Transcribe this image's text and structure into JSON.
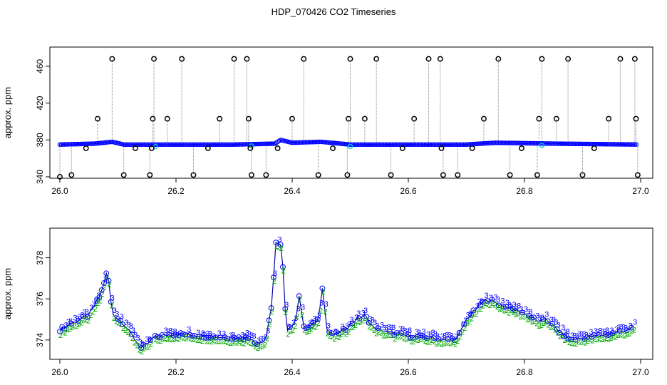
{
  "title": "HDP_070426  CO2 Timeseries",
  "chart_data": [
    {
      "type": "scatter",
      "ylabel": "approx. ppm",
      "xlim": [
        26.0,
        27.0
      ],
      "ylim": [
        340,
        470
      ],
      "x_ticks": [
        26.0,
        26.2,
        26.4,
        26.6,
        26.8,
        27.0
      ],
      "x_tick_labels": [
        "26.0",
        "26.2",
        "26.4",
        "26.6",
        "26.8",
        "27.0"
      ],
      "y_ticks": [
        340,
        380,
        420,
        460
      ],
      "y_tick_labels": [
        "340",
        "380",
        "420",
        "460"
      ],
      "colors": {
        "raw": "#000000",
        "raw_line": "#888888",
        "filtered": "#0000ff",
        "flagged": "#00cccc"
      },
      "series": [
        {
          "marker": "circle",
          "x": [
            26.0,
            26.02,
            26.045,
            26.065,
            26.09,
            26.11,
            26.13,
            26.155,
            26.158,
            26.16,
            26.162,
            26.185,
            26.21,
            26.23,
            26.255,
            26.275,
            26.3,
            26.322,
            26.325,
            26.328,
            26.33,
            26.355,
            26.375,
            26.4,
            26.42,
            26.445,
            26.47,
            26.495,
            26.497,
            26.5,
            26.525,
            26.545,
            26.57,
            26.59,
            26.61,
            26.635,
            26.655,
            26.657,
            26.66,
            26.685,
            26.71,
            26.73,
            26.755,
            26.775,
            26.795,
            26.822,
            26.825,
            26.83,
            26.855,
            26.875,
            26.9,
            26.92,
            26.945,
            26.965,
            26.99,
            26.992,
            26.995
          ],
          "y": [
            340,
            342,
            371,
            403,
            468,
            342,
            371,
            342,
            371,
            403,
            468,
            403,
            468,
            342,
            371,
            403,
            468,
            468,
            403,
            371,
            342,
            342,
            371,
            403,
            468,
            342,
            371,
            342,
            403,
            468,
            403,
            468,
            342,
            371,
            403,
            468,
            468,
            371,
            342,
            342,
            371,
            403,
            468,
            342,
            371,
            342,
            403,
            468,
            403,
            468,
            342,
            371,
            403,
            468,
            468,
            403,
            342
          ]
        }
      ]
    },
    {
      "type": "scatter",
      "ylabel": "approx. ppm",
      "xlim": [
        26.0,
        27.0
      ],
      "ylim": [
        373.3,
        379.2
      ],
      "x_ticks": [
        26.0,
        26.2,
        26.4,
        26.6,
        26.8,
        27.0
      ],
      "x_tick_labels": [
        "26.0",
        "26.2",
        "26.4",
        "26.6",
        "26.8",
        "27.0"
      ],
      "y_ticks": [
        374,
        376,
        378
      ],
      "y_tick_labels": [
        "374",
        "376",
        "378"
      ],
      "colors": {
        "line": "#0000aa",
        "marker_3": "#0000ff",
        "marker_2": "#00aa00"
      },
      "markers": {
        "series_a": "3",
        "series_b": "2",
        "circle": "o"
      },
      "series": [
        {
          "x": [
            26.0,
            26.02,
            26.05,
            26.07,
            26.082,
            26.09,
            26.11,
            26.125,
            26.14,
            26.155,
            26.16,
            26.175,
            26.2,
            26.25,
            26.3,
            26.33,
            26.34,
            26.355,
            26.365,
            26.372,
            26.38,
            26.385,
            26.39,
            26.395,
            26.405,
            26.412,
            26.42,
            26.43,
            26.445,
            26.452,
            26.46,
            26.47,
            26.49,
            26.51,
            26.525,
            26.54,
            26.56,
            26.6,
            26.64,
            26.665,
            26.67,
            26.685,
            26.7,
            26.72,
            26.735,
            26.76,
            26.8,
            26.83,
            26.835,
            26.86,
            26.88,
            26.9,
            26.95,
            26.99
          ],
          "y": [
            374.5,
            374.8,
            375.2,
            376.2,
            377.4,
            375.3,
            374.8,
            374.2,
            373.6,
            373.9,
            374.1,
            374.2,
            374.3,
            374.2,
            374.1,
            374.1,
            373.8,
            374.0,
            375.8,
            378.7,
            378.6,
            377.2,
            374.5,
            374.6,
            374.8,
            376.2,
            374.6,
            374.6,
            375.0,
            376.6,
            374.5,
            374.2,
            374.5,
            375.0,
            375.2,
            374.6,
            374.4,
            374.2,
            374.1,
            374.0,
            374.0,
            374.1,
            375.0,
            375.6,
            376.0,
            375.7,
            375.3,
            374.8,
            375.1,
            374.4,
            374.0,
            374.1,
            374.3,
            374.6
          ]
        }
      ]
    }
  ]
}
